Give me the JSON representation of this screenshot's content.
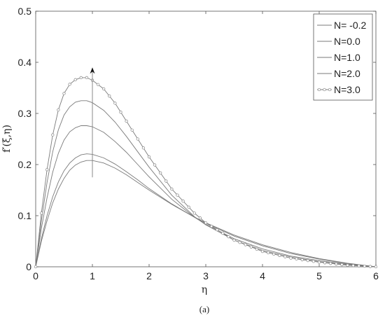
{
  "chart_data": {
    "type": "line",
    "xlabel": "η",
    "ylabel": "f′(ξ,η)",
    "caption": "(a)",
    "xlim": [
      0,
      6
    ],
    "ylim": [
      0,
      0.5
    ],
    "xticks": [
      "0",
      "1",
      "2",
      "3",
      "4",
      "5",
      "6"
    ],
    "yticks": [
      "0",
      "0.1",
      "0.2",
      "0.3",
      "0.4",
      "0.5"
    ],
    "legend_position": "top-right",
    "grid": false,
    "series": [
      {
        "name": "N= -0.2",
        "marker": "none",
        "x": [
          0,
          0.1,
          0.2,
          0.3,
          0.4,
          0.5,
          0.6,
          0.7,
          0.8,
          0.9,
          1.0,
          1.2,
          1.4,
          1.6,
          1.8,
          2.0,
          2.4,
          2.8,
          3.0,
          3.5,
          4.0,
          4.5,
          5.0,
          5.5,
          6.0
        ],
        "y": [
          0,
          0.05,
          0.09,
          0.125,
          0.152,
          0.173,
          0.189,
          0.199,
          0.205,
          0.208,
          0.208,
          0.203,
          0.193,
          0.18,
          0.165,
          0.15,
          0.122,
          0.097,
          0.086,
          0.062,
          0.043,
          0.028,
          0.016,
          0.007,
          0
        ]
      },
      {
        "name": "N=0.0",
        "marker": "none",
        "x": [
          0,
          0.1,
          0.2,
          0.3,
          0.4,
          0.5,
          0.6,
          0.7,
          0.8,
          0.9,
          1.0,
          1.2,
          1.4,
          1.6,
          1.8,
          2.0,
          2.4,
          2.8,
          3.0,
          3.5,
          4.0,
          4.5,
          5.0,
          5.5,
          6.0
        ],
        "y": [
          0,
          0.055,
          0.1,
          0.137,
          0.166,
          0.188,
          0.203,
          0.213,
          0.219,
          0.221,
          0.22,
          0.213,
          0.201,
          0.186,
          0.17,
          0.153,
          0.123,
          0.097,
          0.085,
          0.06,
          0.041,
          0.026,
          0.015,
          0.006,
          0
        ]
      },
      {
        "name": "N=1.0",
        "marker": "none",
        "x": [
          0,
          0.1,
          0.2,
          0.3,
          0.4,
          0.5,
          0.6,
          0.7,
          0.8,
          0.9,
          1.0,
          1.2,
          1.4,
          1.6,
          1.8,
          2.0,
          2.4,
          2.8,
          3.0,
          3.5,
          4.0,
          4.5,
          5.0,
          5.5,
          6.0
        ],
        "y": [
          0,
          0.075,
          0.135,
          0.185,
          0.222,
          0.248,
          0.264,
          0.272,
          0.276,
          0.276,
          0.274,
          0.263,
          0.245,
          0.224,
          0.2,
          0.176,
          0.132,
          0.097,
          0.083,
          0.055,
          0.035,
          0.021,
          0.012,
          0.005,
          0
        ]
      },
      {
        "name": "N=2.0",
        "marker": "none",
        "x": [
          0,
          0.1,
          0.2,
          0.3,
          0.4,
          0.5,
          0.6,
          0.7,
          0.8,
          0.9,
          1.0,
          1.2,
          1.4,
          1.6,
          1.8,
          2.0,
          2.4,
          2.8,
          3.0,
          3.5,
          4.0,
          4.5,
          5.0,
          5.5,
          6.0
        ],
        "y": [
          0,
          0.09,
          0.165,
          0.225,
          0.268,
          0.297,
          0.313,
          0.322,
          0.325,
          0.325,
          0.321,
          0.306,
          0.283,
          0.255,
          0.225,
          0.195,
          0.14,
          0.098,
          0.082,
          0.052,
          0.032,
          0.019,
          0.01,
          0.004,
          0
        ]
      },
      {
        "name": "N=3.0",
        "marker": "circle",
        "x": [
          0,
          0.1,
          0.2,
          0.3,
          0.4,
          0.5,
          0.6,
          0.7,
          0.8,
          0.9,
          1.0,
          1.2,
          1.4,
          1.6,
          1.8,
          2.0,
          2.4,
          2.8,
          3.0,
          3.5,
          4.0,
          4.5,
          5.0,
          5.5,
          6.0
        ],
        "y": [
          0,
          0.105,
          0.19,
          0.258,
          0.307,
          0.339,
          0.357,
          0.366,
          0.37,
          0.37,
          0.365,
          0.348,
          0.32,
          0.285,
          0.25,
          0.215,
          0.152,
          0.105,
          0.086,
          0.052,
          0.03,
          0.017,
          0.009,
          0.003,
          0
        ]
      }
    ],
    "annotation": {
      "type": "arrow",
      "x": 1.0,
      "y_start": 0.175,
      "y_end": 0.39
    }
  }
}
